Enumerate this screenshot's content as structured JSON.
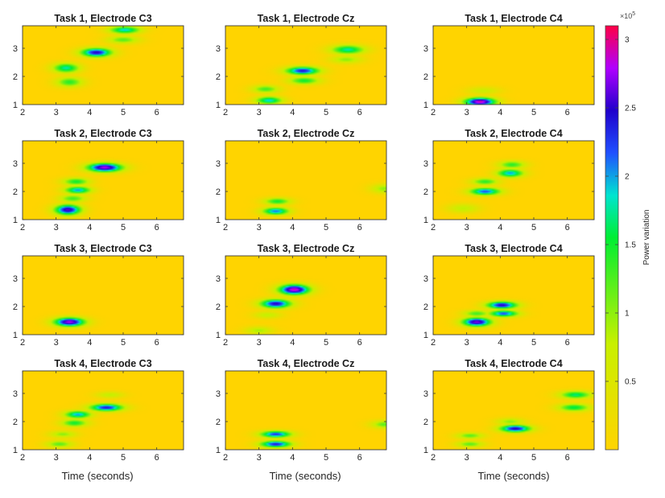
{
  "chart_data": {
    "type": "heatmap",
    "colormap": {
      "name": "power",
      "stops": [
        {
          "v": 0.0,
          "color": "#ffd400"
        },
        {
          "v": 0.25,
          "color": "#c8f000"
        },
        {
          "v": 0.5,
          "color": "#00ee33"
        },
        {
          "v": 0.6,
          "color": "#00e5d0"
        },
        {
          "v": 0.7,
          "color": "#2050ff"
        },
        {
          "v": 0.8,
          "color": "#2000cc"
        },
        {
          "v": 0.9,
          "color": "#b000ff"
        },
        {
          "v": 1.0,
          "color": "#ff0044"
        }
      ],
      "background_color": "#ffd400"
    },
    "colorbar": {
      "label": "Power variation",
      "exponent": "×10",
      "exponent_power": "5",
      "range": [
        0,
        3.1
      ],
      "ticks": [
        "0.5",
        "1",
        "1.5",
        "2",
        "2.5",
        "3"
      ],
      "tick_values": [
        0.5,
        1,
        1.5,
        2,
        2.5,
        3
      ]
    },
    "xlabel": "Time (seconds)",
    "xlim": [
      2,
      6.8
    ],
    "ylim": [
      1,
      3.8
    ],
    "xticks": [
      "2",
      "3",
      "4",
      "5",
      "6"
    ],
    "xtick_values": [
      2,
      3,
      4,
      5,
      6
    ],
    "yticks": [
      "1",
      "2",
      "3"
    ],
    "ytick_values": [
      1,
      2,
      3
    ],
    "panels": [
      {
        "title": "Task 1, Electrode C3",
        "peaks": [
          {
            "x": 3.3,
            "y": 2.3,
            "amp": 1.8,
            "sx": 0.3,
            "sy": 0.13
          },
          {
            "x": 3.4,
            "y": 1.8,
            "amp": 1.4,
            "sx": 0.3,
            "sy": 0.13
          },
          {
            "x": 4.2,
            "y": 2.85,
            "amp": 2.5,
            "sx": 0.35,
            "sy": 0.12
          },
          {
            "x": 5.05,
            "y": 3.65,
            "amp": 1.9,
            "sx": 0.35,
            "sy": 0.1
          },
          {
            "x": 5.0,
            "y": 3.3,
            "amp": 1.2,
            "sx": 0.35,
            "sy": 0.1
          }
        ]
      },
      {
        "title": "Task 1, Electrode Cz",
        "peaks": [
          {
            "x": 3.2,
            "y": 1.55,
            "amp": 1.3,
            "sx": 0.3,
            "sy": 0.1
          },
          {
            "x": 3.3,
            "y": 1.15,
            "amp": 1.9,
            "sx": 0.3,
            "sy": 0.1
          },
          {
            "x": 4.3,
            "y": 2.2,
            "amp": 2.4,
            "sx": 0.38,
            "sy": 0.11
          },
          {
            "x": 4.35,
            "y": 1.85,
            "amp": 1.5,
            "sx": 0.35,
            "sy": 0.1
          },
          {
            "x": 5.65,
            "y": 2.95,
            "amp": 1.8,
            "sx": 0.38,
            "sy": 0.12
          },
          {
            "x": 5.6,
            "y": 2.6,
            "amp": 1.0,
            "sx": 0.35,
            "sy": 0.1
          }
        ]
      },
      {
        "title": "Task 1, Electrode C4",
        "peaks": [
          {
            "x": 3.4,
            "y": 1.1,
            "amp": 2.95,
            "sx": 0.35,
            "sy": 0.11
          },
          {
            "x": 3.5,
            "y": 1.5,
            "amp": 0.7,
            "sx": 0.35,
            "sy": 0.1
          }
        ]
      },
      {
        "title": "Task 2, Electrode C3",
        "peaks": [
          {
            "x": 3.35,
            "y": 1.35,
            "amp": 2.6,
            "sx": 0.3,
            "sy": 0.14
          },
          {
            "x": 3.5,
            "y": 1.75,
            "amp": 1.3,
            "sx": 0.3,
            "sy": 0.1
          },
          {
            "x": 3.65,
            "y": 2.05,
            "amp": 2.0,
            "sx": 0.3,
            "sy": 0.1
          },
          {
            "x": 3.6,
            "y": 2.35,
            "amp": 1.5,
            "sx": 0.3,
            "sy": 0.1
          },
          {
            "x": 4.45,
            "y": 2.85,
            "amp": 2.8,
            "sx": 0.4,
            "sy": 0.12
          }
        ]
      },
      {
        "title": "Task 2, Electrode Cz",
        "peaks": [
          {
            "x": 3.5,
            "y": 1.3,
            "amp": 2.1,
            "sx": 0.3,
            "sy": 0.1
          },
          {
            "x": 3.55,
            "y": 1.65,
            "amp": 1.5,
            "sx": 0.3,
            "sy": 0.09
          },
          {
            "x": 6.75,
            "y": 2.1,
            "amp": 1.0,
            "sx": 0.3,
            "sy": 0.12
          }
        ]
      },
      {
        "title": "Task 2, Electrode C4",
        "peaks": [
          {
            "x": 2.9,
            "y": 1.4,
            "amp": 0.8,
            "sx": 0.35,
            "sy": 0.12
          },
          {
            "x": 3.55,
            "y": 2.0,
            "amp": 2.2,
            "sx": 0.35,
            "sy": 0.1
          },
          {
            "x": 3.55,
            "y": 2.35,
            "amp": 1.4,
            "sx": 0.3,
            "sy": 0.09
          },
          {
            "x": 4.3,
            "y": 2.65,
            "amp": 2.0,
            "sx": 0.3,
            "sy": 0.11
          },
          {
            "x": 4.35,
            "y": 2.95,
            "amp": 1.4,
            "sx": 0.3,
            "sy": 0.1
          }
        ]
      },
      {
        "title": "Task 3, Electrode C3",
        "peaks": [
          {
            "x": 3.4,
            "y": 1.45,
            "amp": 2.8,
            "sx": 0.35,
            "sy": 0.12
          }
        ]
      },
      {
        "title": "Task 3, Electrode Cz",
        "peaks": [
          {
            "x": 3.0,
            "y": 1.15,
            "amp": 0.9,
            "sx": 0.3,
            "sy": 0.1
          },
          {
            "x": 3.25,
            "y": 1.7,
            "amp": 0.8,
            "sx": 0.3,
            "sy": 0.09
          },
          {
            "x": 3.5,
            "y": 2.1,
            "amp": 2.5,
            "sx": 0.35,
            "sy": 0.12
          },
          {
            "x": 4.05,
            "y": 2.6,
            "amp": 2.9,
            "sx": 0.35,
            "sy": 0.14
          }
        ]
      },
      {
        "title": "Task 3, Electrode C4",
        "peaks": [
          {
            "x": 3.3,
            "y": 1.45,
            "amp": 2.7,
            "sx": 0.33,
            "sy": 0.12
          },
          {
            "x": 3.3,
            "y": 1.75,
            "amp": 1.3,
            "sx": 0.3,
            "sy": 0.09
          },
          {
            "x": 4.05,
            "y": 2.05,
            "amp": 2.5,
            "sx": 0.35,
            "sy": 0.1
          },
          {
            "x": 4.1,
            "y": 1.75,
            "amp": 2.2,
            "sx": 0.33,
            "sy": 0.09
          }
        ]
      },
      {
        "title": "Task 4, Electrode C3",
        "peaks": [
          {
            "x": 3.1,
            "y": 1.2,
            "amp": 1.2,
            "sx": 0.3,
            "sy": 0.09
          },
          {
            "x": 3.2,
            "y": 1.55,
            "amp": 1.0,
            "sx": 0.3,
            "sy": 0.09
          },
          {
            "x": 3.55,
            "y": 1.95,
            "amp": 1.5,
            "sx": 0.3,
            "sy": 0.1
          },
          {
            "x": 3.65,
            "y": 2.25,
            "amp": 2.0,
            "sx": 0.3,
            "sy": 0.1
          },
          {
            "x": 4.5,
            "y": 2.5,
            "amp": 2.4,
            "sx": 0.38,
            "sy": 0.1
          },
          {
            "x": 4.6,
            "y": 2.95,
            "amp": 0.8,
            "sx": 0.3,
            "sy": 0.08
          }
        ]
      },
      {
        "title": "Task 4, Electrode Cz",
        "peaks": [
          {
            "x": 3.5,
            "y": 1.2,
            "amp": 2.4,
            "sx": 0.35,
            "sy": 0.09
          },
          {
            "x": 3.5,
            "y": 1.55,
            "amp": 2.3,
            "sx": 0.35,
            "sy": 0.09
          },
          {
            "x": 6.75,
            "y": 1.9,
            "amp": 1.2,
            "sx": 0.3,
            "sy": 0.1
          }
        ]
      },
      {
        "title": "Task 4, Electrode C4",
        "peaks": [
          {
            "x": 3.1,
            "y": 1.2,
            "amp": 1.2,
            "sx": 0.3,
            "sy": 0.08
          },
          {
            "x": 3.1,
            "y": 1.5,
            "amp": 1.2,
            "sx": 0.3,
            "sy": 0.08
          },
          {
            "x": 4.45,
            "y": 1.75,
            "amp": 2.5,
            "sx": 0.35,
            "sy": 0.1
          },
          {
            "x": 4.3,
            "y": 2.0,
            "amp": 1.0,
            "sx": 0.3,
            "sy": 0.09
          },
          {
            "x": 6.25,
            "y": 2.95,
            "amp": 1.7,
            "sx": 0.35,
            "sy": 0.1
          },
          {
            "x": 6.2,
            "y": 2.5,
            "amp": 1.6,
            "sx": 0.35,
            "sy": 0.1
          }
        ]
      }
    ]
  }
}
